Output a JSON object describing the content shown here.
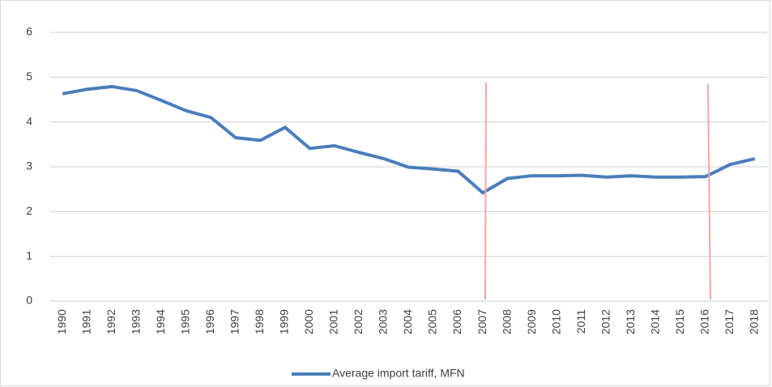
{
  "chart_data": {
    "type": "line",
    "categories": [
      "1990",
      "1991",
      "1992",
      "1993",
      "1994",
      "1995",
      "1996",
      "1997",
      "1998",
      "1999",
      "2000",
      "2001",
      "2002",
      "2003",
      "2004",
      "2005",
      "2006",
      "2007",
      "2008",
      "2009",
      "2010",
      "2011",
      "2012",
      "2013",
      "2014",
      "2015",
      "2016",
      "2017",
      "2018"
    ],
    "series": [
      {
        "name": "Average import tariff, MFN",
        "color": "#4a7ebb",
        "values": [
          4.63,
          4.73,
          4.79,
          4.7,
          4.48,
          4.25,
          4.1,
          3.65,
          3.59,
          3.88,
          3.41,
          3.47,
          3.32,
          3.18,
          2.99,
          2.95,
          2.9,
          2.42,
          2.74,
          2.8,
          2.8,
          2.81,
          2.77,
          2.8,
          2.77,
          2.77,
          2.78,
          3.05,
          3.18
        ]
      }
    ],
    "ylim": [
      0,
      6
    ],
    "yticks": [
      0,
      1,
      2,
      3,
      4,
      5,
      6
    ],
    "grid": true,
    "legend": "bottom"
  }
}
